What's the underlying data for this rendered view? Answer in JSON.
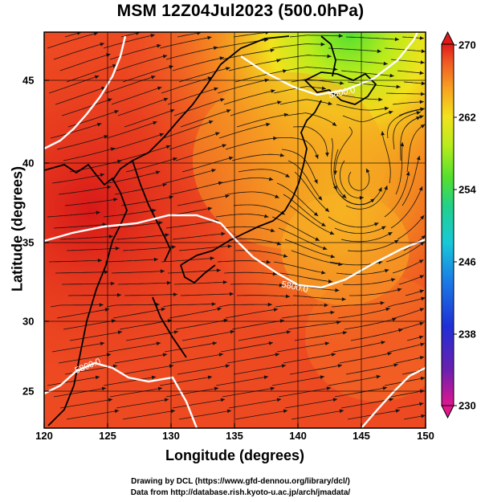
{
  "title": "MSM 12Z04Jul2023 (500.0hPa)",
  "axes": {
    "xlabel": "Longitude (degrees)",
    "ylabel": "Latitude  (degrees)",
    "x_ticks": [
      "120",
      "125",
      "130",
      "135",
      "140",
      "145",
      "150"
    ],
    "y_ticks": [
      "25",
      "30",
      "35",
      "40",
      "45"
    ]
  },
  "colorbar": {
    "min": 230,
    "max": 270,
    "ticks": [
      "270",
      "262",
      "254",
      "246",
      "238",
      "230"
    ],
    "colors": [
      "#e0178e",
      "#6a1fb0",
      "#1f2fd6",
      "#1a7fe6",
      "#18c8d8",
      "#22d08c",
      "#52e02e",
      "#b8ec1c",
      "#f2e21c",
      "#f8a020",
      "#f05a24",
      "#e01a1a"
    ]
  },
  "contour_labels": [
    "5800.0",
    "5800.0",
    "5800.0"
  ],
  "credits": {
    "line1": "Drawing by DCL (https://www.gfd-dennou.org/library/dcl/)",
    "line2": "Data from http://database.rish.kyoto-u.ac.jp/arch/jmadata/"
  }
}
